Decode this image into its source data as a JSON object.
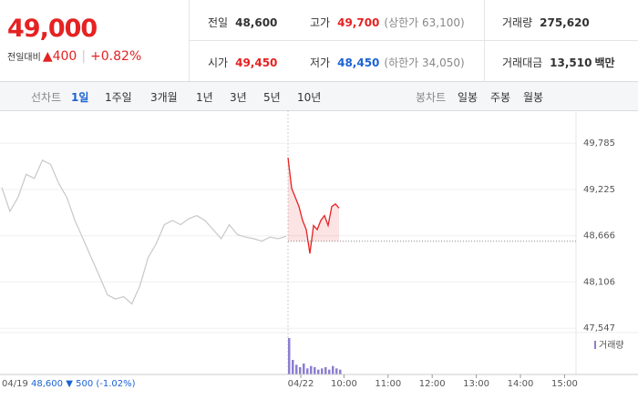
{
  "header": {
    "price": "49,000",
    "change_label": "전일대비",
    "change": "400",
    "change_pct": "+0.82%"
  },
  "stats": [
    {
      "label": "전일",
      "value": "48,600"
    },
    {
      "label": "고가",
      "value": "49,700",
      "note": "(상한가 63,100)"
    },
    {
      "label": "거래량",
      "value": "275,620"
    },
    {
      "label": "시가",
      "value": "49,450"
    },
    {
      "label": "저가",
      "value": "48,450",
      "note": "(하한가 34,050)"
    },
    {
      "label": "거래대금",
      "value": "13,510",
      "unit": "백만"
    }
  ],
  "tabs": {
    "line_label": "선차트",
    "line": [
      "1일",
      "1주일",
      "3개월",
      "1년",
      "3년",
      "5년",
      "10년"
    ],
    "candle_label": "봉차트",
    "candle": [
      "일봉",
      "주봉",
      "월봉"
    ]
  },
  "prev_day": {
    "date": "04/19",
    "close": "48,600",
    "change": "500",
    "change_pct": "(-1.02%)"
  },
  "chart_data": {
    "type": "line",
    "ylim": [
      47450,
      49920
    ],
    "yticks": [
      {
        "value": 49785,
        "label": "49,785"
      },
      {
        "value": 49225,
        "label": "49,225"
      },
      {
        "value": 48666,
        "label": "48,666"
      },
      {
        "value": 48106,
        "label": "48,106"
      },
      {
        "value": 47547,
        "label": "47,547"
      }
    ],
    "baseline": 48600,
    "x_labels": [
      "04/22",
      "10:00",
      "11:00",
      "12:00",
      "13:00",
      "14:00",
      "15:00"
    ],
    "series": [
      {
        "color": "#c8c8c8",
        "values": [
          49250,
          48960,
          49130,
          49410,
          49360,
          49580,
          49530,
          49300,
          49130,
          48850,
          48630,
          48400,
          48180,
          47950,
          47900,
          47930,
          47840,
          48060,
          48400,
          48570,
          48800,
          48850,
          48800,
          48870,
          48910,
          48850,
          48740,
          48630,
          48800,
          48680,
          48650,
          48630,
          48600,
          48650,
          48630,
          48660
        ]
      },
      {
        "color": "#e52222",
        "values": [
          49610,
          49240,
          49130,
          49020,
          48850,
          48740,
          48450,
          48790,
          48740,
          48850,
          48910,
          48790,
          49020,
          49050,
          49000
        ]
      }
    ],
    "volume_legend": "거래량",
    "volume": {
      "color": "#8c7fd0",
      "values": [
        30,
        12,
        8,
        6,
        9,
        5,
        7,
        6,
        4,
        5,
        6,
        4,
        7,
        5,
        4
      ]
    }
  }
}
